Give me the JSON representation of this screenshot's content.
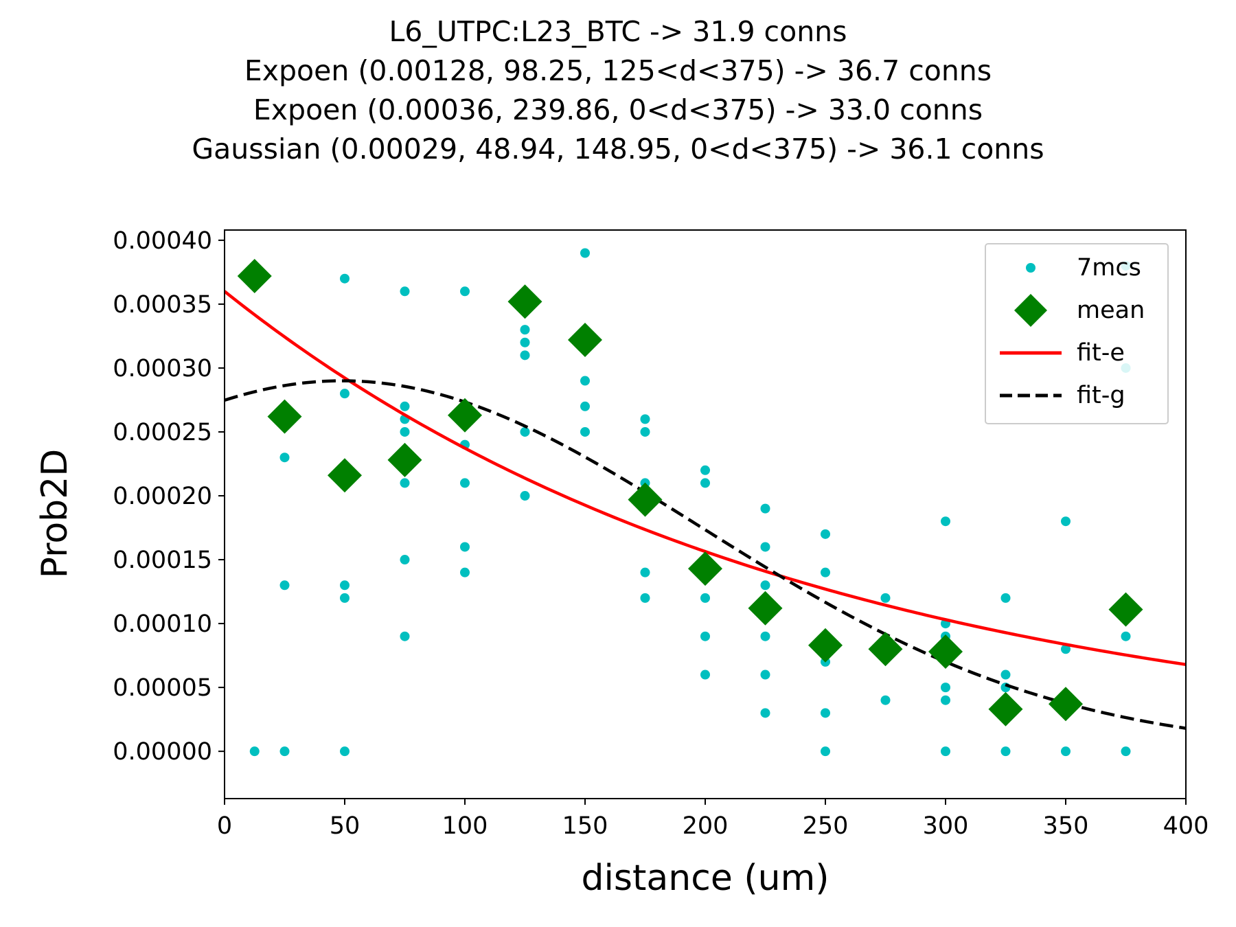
{
  "titles": [
    "L6_UTPC:L23_BTC -> 31.9 conns",
    "Expoen (0.00128, 98.25, 125<d<375) -> 36.7 conns",
    "Expoen (0.00036, 239.86, 0<d<375) -> 33.0 conns",
    "Gaussian (0.00029, 48.94, 148.95, 0<d<375) -> 36.1 conns"
  ],
  "colors": {
    "points": "#00bfbf",
    "mean": "#008000",
    "fit_e": "#ff0000",
    "fit_g": "#000000"
  },
  "chart_data": {
    "type": "scatter",
    "xlabel": "distance (um)",
    "ylabel": "Prob2D",
    "xlim": [
      0,
      400
    ],
    "ylim": [
      -3.7e-05,
      0.000408
    ],
    "x_ticks": [
      0,
      50,
      100,
      150,
      200,
      250,
      300,
      350,
      400
    ],
    "x_tick_labels": [
      "0",
      "50",
      "100",
      "150",
      "200",
      "250",
      "300",
      "350",
      "400"
    ],
    "y_ticks": [
      0,
      5e-05,
      0.0001,
      0.00015,
      0.0002,
      0.00025,
      0.0003,
      0.00035,
      0.0004
    ],
    "y_tick_labels": [
      "0.00000",
      "0.00005",
      "0.00010",
      "0.00015",
      "0.00020",
      "0.00025",
      "0.00030",
      "0.00035",
      "0.00040"
    ],
    "legend": {
      "placement": "top-right",
      "entries": [
        "7mcs",
        "mean",
        "fit-e",
        "fit-g"
      ]
    },
    "series": [
      {
        "name": "7mcs",
        "style": "points",
        "points": [
          [
            12.5,
            0
          ],
          [
            25,
            0.00023
          ],
          [
            25,
            0.00013
          ],
          [
            25,
            0
          ],
          [
            50,
            0.00037
          ],
          [
            50,
            0.00028
          ],
          [
            50,
            0.00013
          ],
          [
            50,
            0.00012
          ],
          [
            50,
            0
          ],
          [
            75,
            0.00036
          ],
          [
            75,
            0.00027
          ],
          [
            75,
            0.00026
          ],
          [
            75,
            0.00025
          ],
          [
            75,
            0.00021
          ],
          [
            75,
            0.00015
          ],
          [
            75,
            9e-05
          ],
          [
            100,
            0.00036
          ],
          [
            100,
            0.00024
          ],
          [
            100,
            0.00021
          ],
          [
            100,
            0.00016
          ],
          [
            100,
            0.00014
          ],
          [
            125,
            0.00033
          ],
          [
            125,
            0.00032
          ],
          [
            125,
            0.00031
          ],
          [
            125,
            0.00025
          ],
          [
            125,
            0.0002
          ],
          [
            150,
            0.00039
          ],
          [
            150,
            0.00029
          ],
          [
            150,
            0.00027
          ],
          [
            150,
            0.00025
          ],
          [
            175,
            0.00026
          ],
          [
            175,
            0.00025
          ],
          [
            175,
            0.00021
          ],
          [
            175,
            0.00014
          ],
          [
            175,
            0.00012
          ],
          [
            200,
            0.00022
          ],
          [
            200,
            0.00021
          ],
          [
            200,
            0.00012
          ],
          [
            200,
            9e-05
          ],
          [
            200,
            6e-05
          ],
          [
            225,
            0.00019
          ],
          [
            225,
            0.00016
          ],
          [
            225,
            0.00013
          ],
          [
            225,
            9e-05
          ],
          [
            225,
            6e-05
          ],
          [
            225,
            3e-05
          ],
          [
            250,
            0.00017
          ],
          [
            250,
            0.00014
          ],
          [
            250,
            7e-05
          ],
          [
            250,
            3e-05
          ],
          [
            250,
            0
          ],
          [
            275,
            0.00012
          ],
          [
            275,
            4e-05
          ],
          [
            300,
            0.00018
          ],
          [
            300,
            0.0001
          ],
          [
            300,
            9e-05
          ],
          [
            300,
            5e-05
          ],
          [
            300,
            4e-05
          ],
          [
            300,
            0
          ],
          [
            325,
            0.00012
          ],
          [
            325,
            6e-05
          ],
          [
            325,
            5e-05
          ],
          [
            325,
            0
          ],
          [
            350,
            0.00018
          ],
          [
            350,
            8e-05
          ],
          [
            350,
            0
          ],
          [
            375,
            0.00038
          ],
          [
            375,
            0.0003
          ],
          [
            375,
            9e-05
          ],
          [
            375,
            0
          ]
        ]
      },
      {
        "name": "mean",
        "style": "diamonds",
        "points": [
          [
            12.5,
            0.000372
          ],
          [
            25,
            0.000262
          ],
          [
            50,
            0.000216
          ],
          [
            75,
            0.000228
          ],
          [
            100,
            0.000263
          ],
          [
            125,
            0.000352
          ],
          [
            150,
            0.000322
          ],
          [
            175,
            0.000197
          ],
          [
            200,
            0.000143
          ],
          [
            225,
            0.000112
          ],
          [
            250,
            8.3e-05
          ],
          [
            275,
            8e-05
          ],
          [
            300,
            7.8e-05
          ],
          [
            325,
            3.3e-05
          ],
          [
            350,
            3.7e-05
          ],
          [
            375,
            0.000111
          ]
        ]
      },
      {
        "name": "fit-e",
        "style": "line",
        "function": "exponential",
        "params": {
          "a": 0.00036,
          "b": 239.86
        }
      },
      {
        "name": "fit-g",
        "style": "dashed",
        "function": "gaussian",
        "params": {
          "a": 0.00029,
          "mu": 48.94,
          "sigma": 148.95
        }
      }
    ]
  }
}
